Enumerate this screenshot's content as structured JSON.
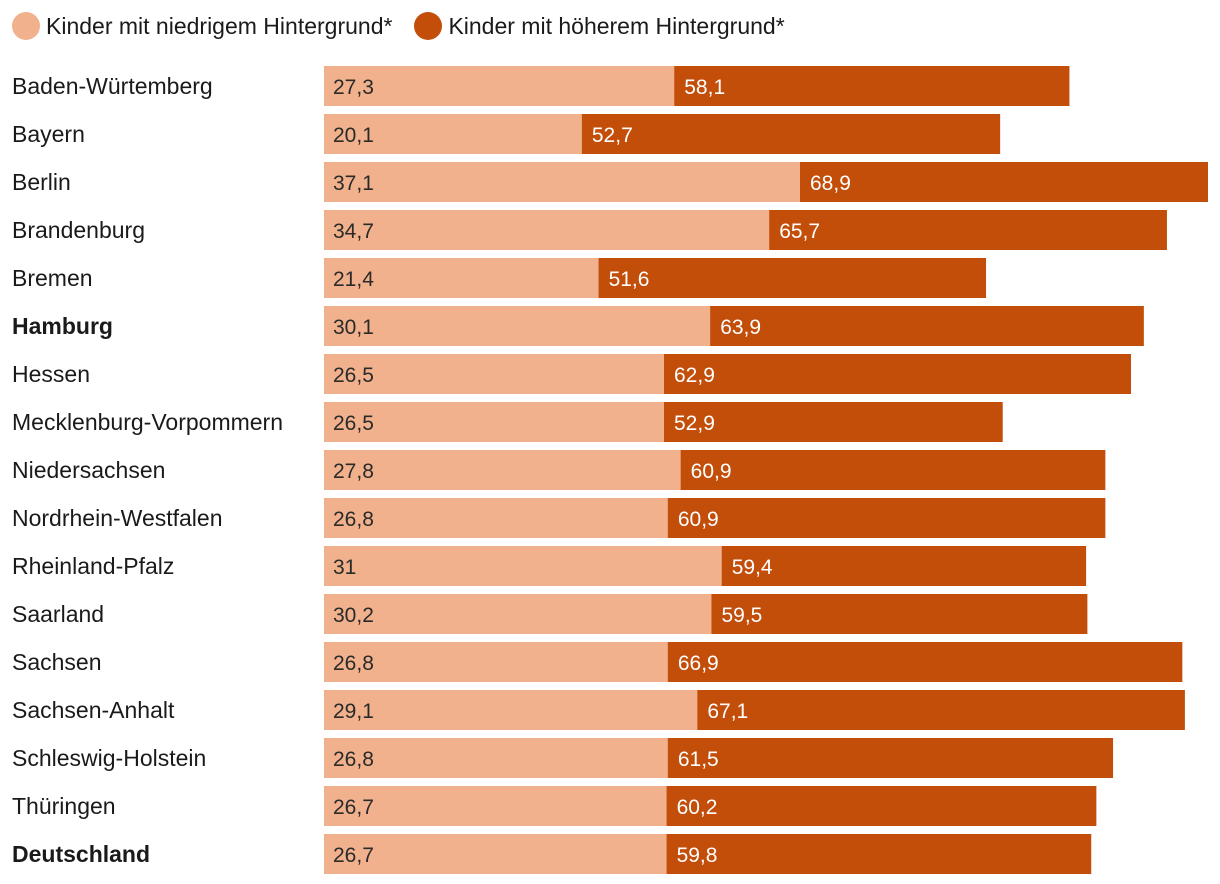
{
  "legend": {
    "low_label": "Kinder mit niedrigem Hintergrund*",
    "high_label": "Kinder mit höherem Hintergrund*"
  },
  "colors": {
    "low": "#f0b18c",
    "high": "#c24e0a",
    "low_text": "#2a2a2a",
    "high_text": "#ffffff"
  },
  "chart_data": {
    "type": "bar",
    "orientation": "horizontal",
    "layout": "overlapping",
    "categories": [
      "Baden-Würtemberg",
      "Bayern",
      "Berlin",
      "Brandenburg",
      "Bremen",
      "Hamburg",
      "Hessen",
      "Mecklenburg-Vorpommern",
      "Niedersachsen",
      "Nordrhein-Westfalen",
      "Rheinland-Pfalz",
      "Saarland",
      "Sachsen",
      "Sachsen-Anhalt",
      "Schleswig-Holstein",
      "Thüringen",
      "Deutschland"
    ],
    "bold_categories": [
      "Hamburg",
      "Deutschland"
    ],
    "series": [
      {
        "name": "Kinder mit niedrigem Hintergrund*",
        "values": [
          27.3,
          20.1,
          37.1,
          34.7,
          21.4,
          30.1,
          26.5,
          26.5,
          27.8,
          26.8,
          31,
          30.2,
          26.8,
          29.1,
          26.8,
          26.7,
          26.7
        ],
        "labels": [
          "27,3",
          "20,1",
          "37,1",
          "34,7",
          "21,4",
          "30,1",
          "26,5",
          "26,5",
          "27,8",
          "26,8",
          "31",
          "30,2",
          "26,8",
          "29,1",
          "26,8",
          "26,7",
          "26,7"
        ]
      },
      {
        "name": "Kinder mit höherem Hintergrund*",
        "values": [
          58.1,
          52.7,
          68.9,
          65.7,
          51.6,
          63.9,
          62.9,
          52.9,
          60.9,
          60.9,
          59.4,
          59.5,
          66.9,
          67.1,
          61.5,
          60.2,
          59.8
        ],
        "labels": [
          "58,1",
          "52,7",
          "68,9",
          "65,7",
          "51,6",
          "63,9",
          "62,9",
          "52,9",
          "60,9",
          "60,9",
          "59,4",
          "59,5",
          "66,9",
          "67,1",
          "61,5",
          "60,2",
          "59,8"
        ]
      }
    ],
    "xlim": [
      0,
      68.9
    ]
  }
}
